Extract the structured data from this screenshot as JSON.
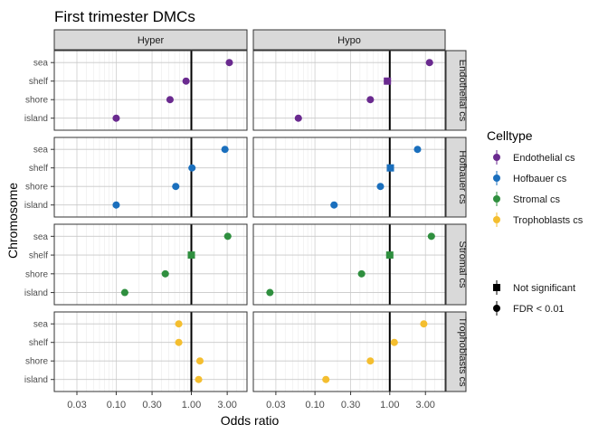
{
  "chart_data": {
    "type": "scatter",
    "title": "First trimester DMCs",
    "xlabel": "Odds ratio",
    "ylabel": "Chromosome",
    "x_scale": "log10",
    "x_ticks": [
      0.03,
      0.1,
      0.3,
      1.0,
      3.0
    ],
    "x_tick_labels": [
      "0.03",
      "0.10",
      "0.30",
      "1.00",
      "3.00"
    ],
    "xlim": [
      0.015,
      5.5
    ],
    "reference_line_x": 1.0,
    "categories": [
      "sea",
      "shelf",
      "shore",
      "island"
    ],
    "column_facets": [
      "Hyper",
      "Hypo"
    ],
    "row_facets": [
      "Endothelial cs",
      "Hofbauer cs",
      "Stromal cs",
      "Trophoblasts cs"
    ],
    "legend": {
      "color_title": "Celltype",
      "color_items": [
        {
          "label": "Endothelial cs",
          "color": "#6a2a8f"
        },
        {
          "label": "Hofbauer cs",
          "color": "#1a6fbd"
        },
        {
          "label": "Stromal cs",
          "color": "#2f8f3f"
        },
        {
          "label": "Trophoblasts cs",
          "color": "#f4be2f"
        }
      ],
      "shape_items": [
        {
          "label": "Not significant",
          "shape": "square"
        },
        {
          "label": "FDR < 0.01",
          "shape": "circle"
        }
      ],
      "placement": "right"
    },
    "grid": true,
    "series": [
      {
        "celltype": "Endothelial cs",
        "direction": "Hyper",
        "points": [
          {
            "category": "sea",
            "x": 3.2,
            "significant": true
          },
          {
            "category": "shelf",
            "x": 0.85,
            "significant": true
          },
          {
            "category": "shore",
            "x": 0.52,
            "significant": true
          },
          {
            "category": "island",
            "x": 0.1,
            "significant": true
          }
        ]
      },
      {
        "celltype": "Endothelial cs",
        "direction": "Hypo",
        "points": [
          {
            "category": "sea",
            "x": 3.4,
            "significant": true
          },
          {
            "category": "shelf",
            "x": 0.93,
            "significant": false
          },
          {
            "category": "shore",
            "x": 0.55,
            "significant": true
          },
          {
            "category": "island",
            "x": 0.06,
            "significant": true
          }
        ]
      },
      {
        "celltype": "Hofbauer cs",
        "direction": "Hyper",
        "points": [
          {
            "category": "sea",
            "x": 2.8,
            "significant": true
          },
          {
            "category": "shelf",
            "x": 1.02,
            "significant": true
          },
          {
            "category": "shore",
            "x": 0.62,
            "significant": true
          },
          {
            "category": "island",
            "x": 0.1,
            "significant": true
          }
        ]
      },
      {
        "celltype": "Hofbauer cs",
        "direction": "Hypo",
        "points": [
          {
            "category": "sea",
            "x": 2.35,
            "significant": true
          },
          {
            "category": "shelf",
            "x": 1.02,
            "significant": false
          },
          {
            "category": "shore",
            "x": 0.75,
            "significant": true
          },
          {
            "category": "island",
            "x": 0.18,
            "significant": true
          }
        ]
      },
      {
        "celltype": "Stromal cs",
        "direction": "Hyper",
        "points": [
          {
            "category": "sea",
            "x": 3.05,
            "significant": true
          },
          {
            "category": "shelf",
            "x": 1.0,
            "significant": false
          },
          {
            "category": "shore",
            "x": 0.45,
            "significant": true
          },
          {
            "category": "island",
            "x": 0.13,
            "significant": true
          }
        ]
      },
      {
        "celltype": "Stromal cs",
        "direction": "Hypo",
        "points": [
          {
            "category": "sea",
            "x": 3.6,
            "significant": true
          },
          {
            "category": "shelf",
            "x": 1.0,
            "significant": false
          },
          {
            "category": "shore",
            "x": 0.42,
            "significant": true
          },
          {
            "category": "island",
            "x": 0.025,
            "significant": true
          }
        ]
      },
      {
        "celltype": "Trophoblasts cs",
        "direction": "Hyper",
        "points": [
          {
            "category": "sea",
            "x": 0.68,
            "significant": true
          },
          {
            "category": "shelf",
            "x": 0.68,
            "significant": true
          },
          {
            "category": "shore",
            "x": 1.3,
            "significant": true
          },
          {
            "category": "island",
            "x": 1.25,
            "significant": true
          }
        ]
      },
      {
        "celltype": "Trophoblasts cs",
        "direction": "Hypo",
        "points": [
          {
            "category": "sea",
            "x": 2.85,
            "significant": true
          },
          {
            "category": "shelf",
            "x": 1.15,
            "significant": true
          },
          {
            "category": "shore",
            "x": 0.55,
            "significant": true
          },
          {
            "category": "island",
            "x": 0.14,
            "significant": true
          }
        ]
      }
    ]
  }
}
